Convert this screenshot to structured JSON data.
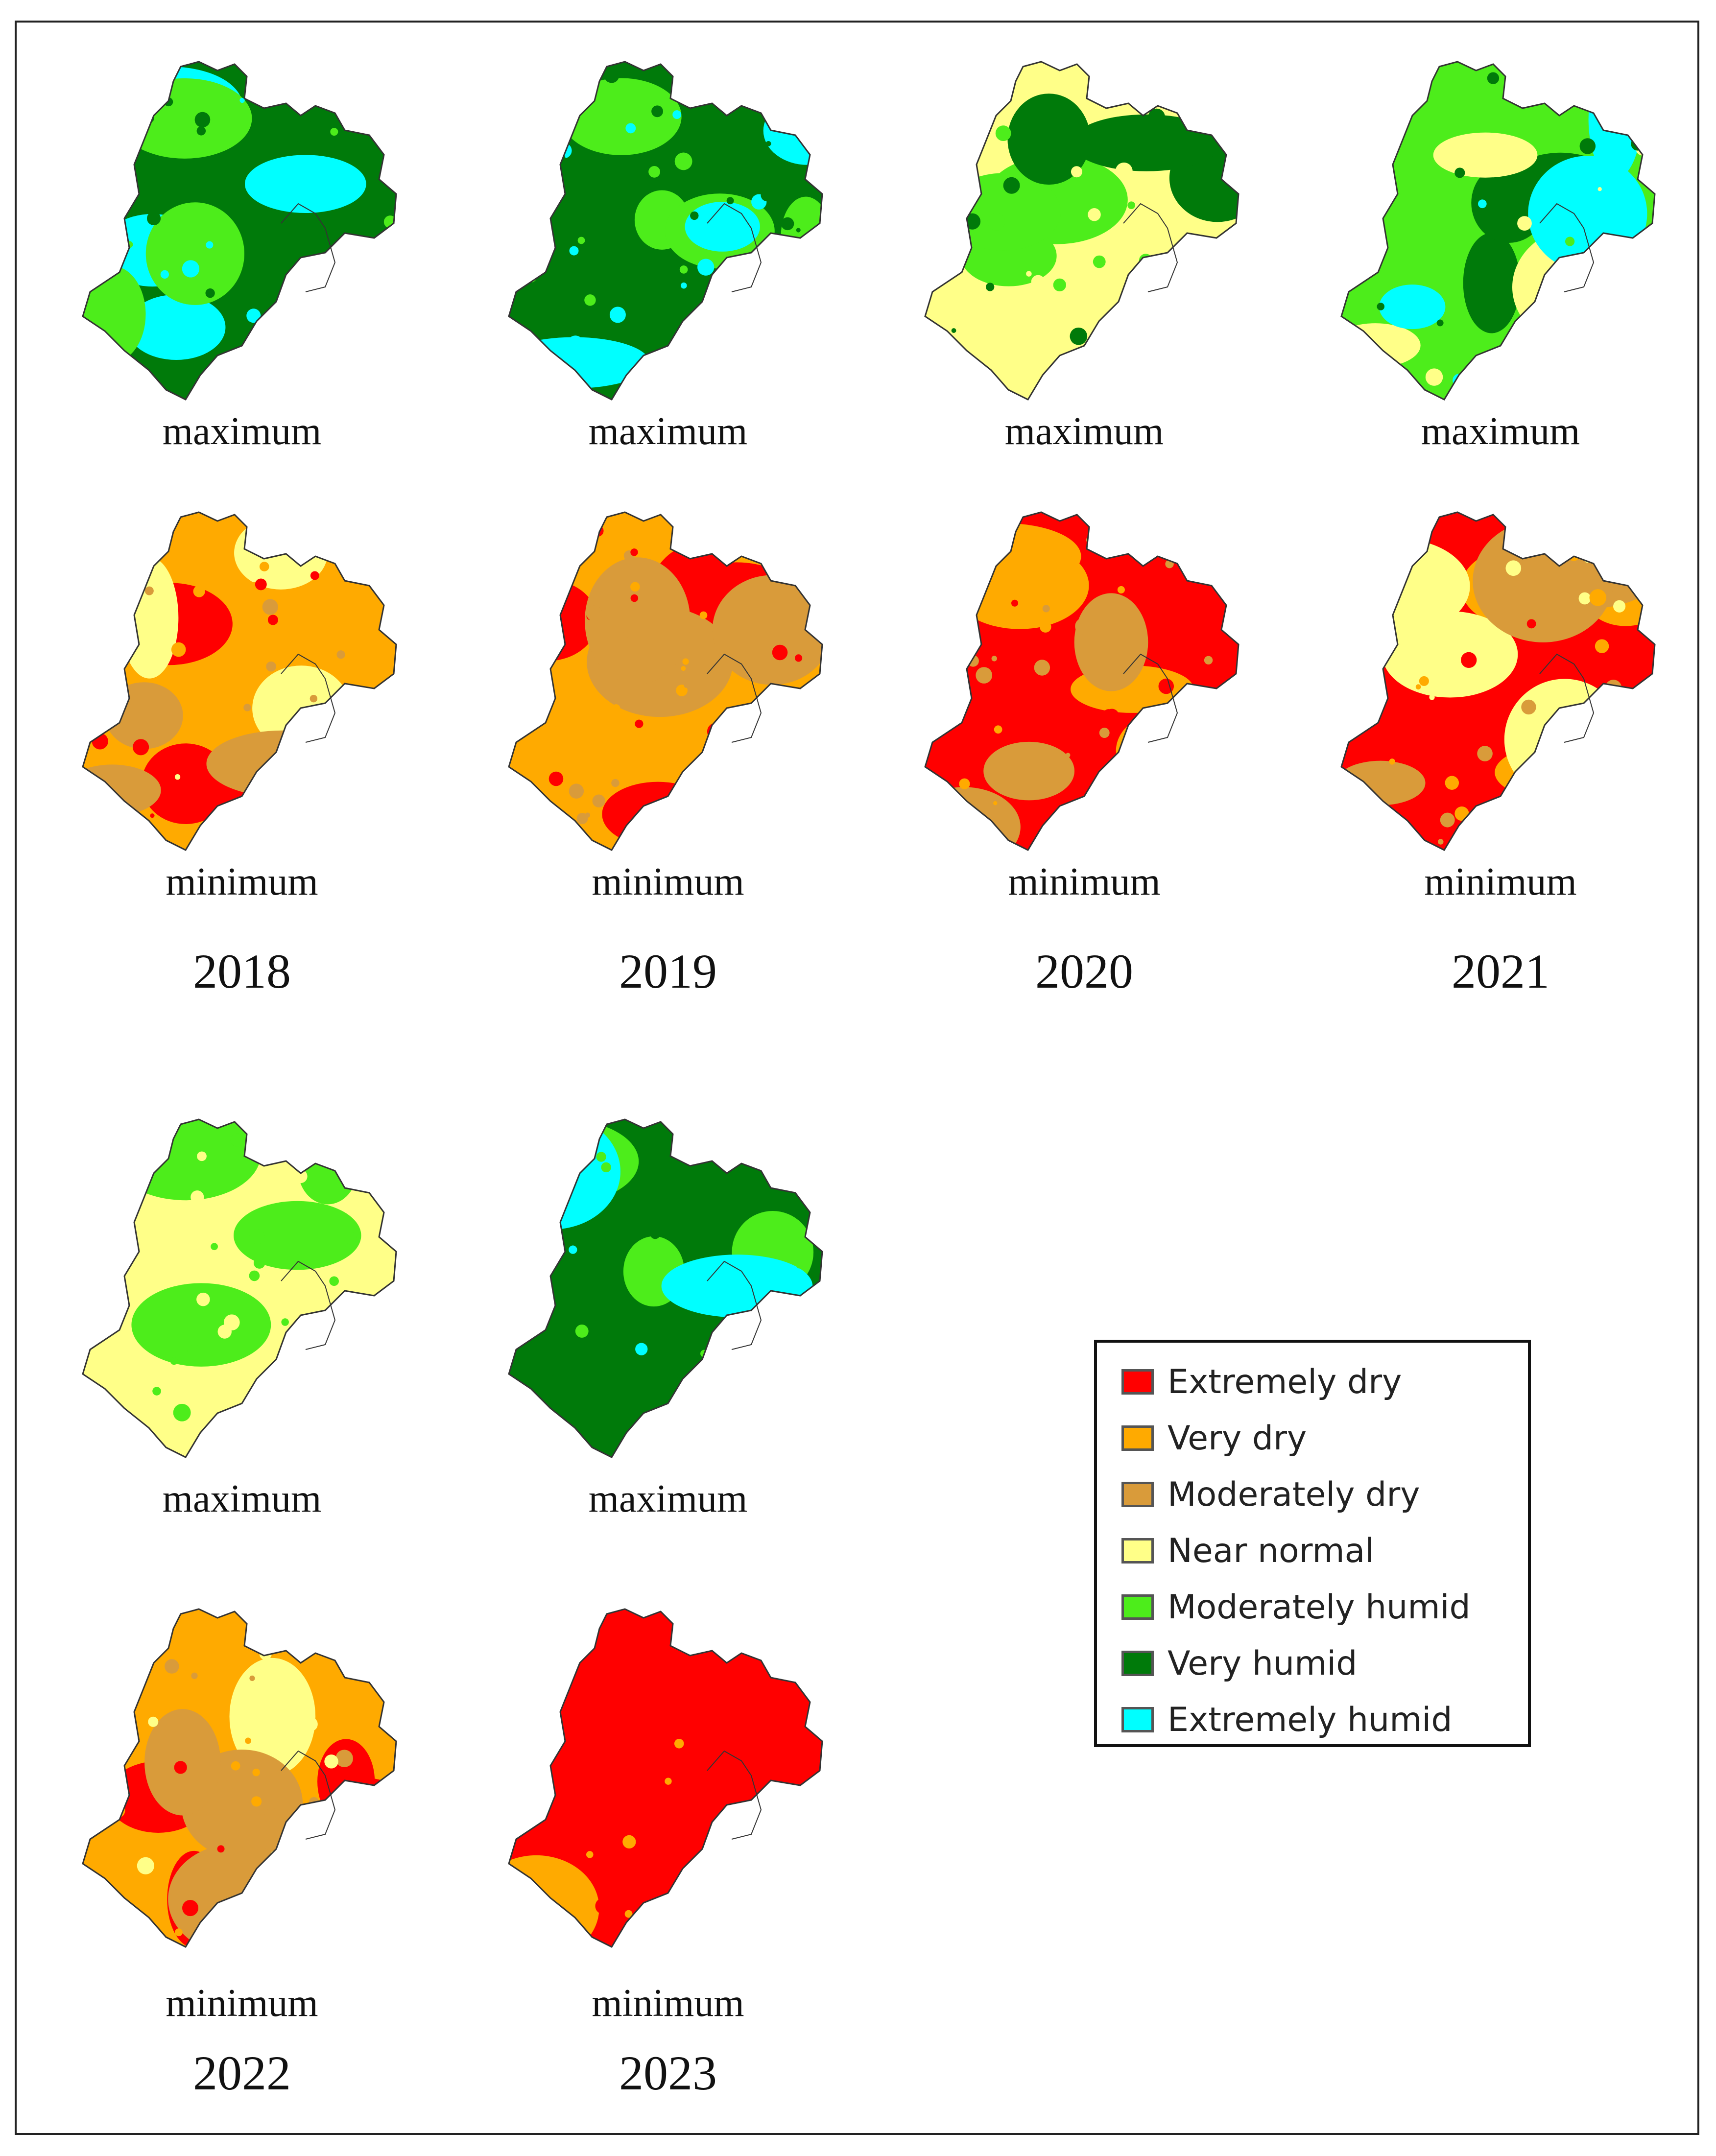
{
  "colors": {
    "extremely_dry": "#ff0000",
    "very_dry": "#ffaa00",
    "moderately_dry": "#d99b3a",
    "near_normal": "#ffff88",
    "moderately_humid": "#4ded1b",
    "very_humid": "#007a0a",
    "extremely_humid": "#00ffff"
  },
  "panels": [
    {
      "id": "2018-max",
      "caption": "maximum",
      "base": "very_humid",
      "accents": [
        "extremely_humid",
        "moderately_humid"
      ]
    },
    {
      "id": "2019-max",
      "caption": "maximum",
      "base": "very_humid",
      "accents": [
        "moderately_humid",
        "extremely_humid"
      ]
    },
    {
      "id": "2020-max",
      "caption": "maximum",
      "base": "near_normal",
      "accents": [
        "moderately_humid",
        "very_humid"
      ]
    },
    {
      "id": "2021-max",
      "caption": "maximum",
      "base": "moderately_humid",
      "accents": [
        "very_humid",
        "near_normal",
        "extremely_humid"
      ]
    },
    {
      "id": "2018-min",
      "caption": "minimum",
      "base": "very_dry",
      "accents": [
        "extremely_dry",
        "near_normal",
        "moderately_dry"
      ]
    },
    {
      "id": "2019-min",
      "caption": "minimum",
      "base": "very_dry",
      "accents": [
        "extremely_dry",
        "moderately_dry"
      ]
    },
    {
      "id": "2020-min",
      "caption": "minimum",
      "base": "extremely_dry",
      "accents": [
        "very_dry",
        "moderately_dry"
      ]
    },
    {
      "id": "2021-min",
      "caption": "minimum",
      "base": "extremely_dry",
      "accents": [
        "very_dry",
        "near_normal",
        "moderately_dry"
      ]
    },
    {
      "id": "2022-max",
      "caption": "maximum",
      "base": "near_normal",
      "accents": [
        "moderately_humid"
      ]
    },
    {
      "id": "2023-max",
      "caption": "maximum",
      "base": "very_humid",
      "accents": [
        "moderately_humid",
        "extremely_humid"
      ]
    },
    {
      "id": "2022-min",
      "caption": "minimum",
      "base": "very_dry",
      "accents": [
        "extremely_dry",
        "near_normal",
        "moderately_dry"
      ]
    },
    {
      "id": "2023-min",
      "caption": "minimum",
      "base": "extremely_dry",
      "accents": [
        "very_dry",
        "extremely_dry"
      ]
    }
  ],
  "years": [
    "2018",
    "2019",
    "2020",
    "2021",
    "2022",
    "2023"
  ],
  "legend": [
    {
      "key": "extremely_dry",
      "label": "Extremely dry"
    },
    {
      "key": "very_dry",
      "label": "Very dry"
    },
    {
      "key": "moderately_dry",
      "label": "Moderately dry"
    },
    {
      "key": "near_normal",
      "label": "Near normal"
    },
    {
      "key": "moderately_humid",
      "label": "Moderately humid"
    },
    {
      "key": "very_humid",
      "label": "Very humid"
    },
    {
      "key": "extremely_humid",
      "label": "Extremely humid"
    }
  ]
}
